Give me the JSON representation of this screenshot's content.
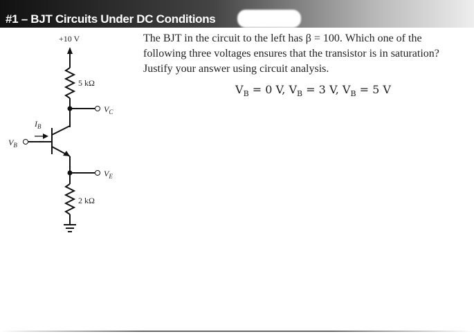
{
  "header": {
    "title": "#1 – BJT Circuits Under DC Conditions"
  },
  "circuit": {
    "supply": "+10 V",
    "rc": "5 kΩ",
    "re": "2 kΩ",
    "vc": {
      "symbol": "V",
      "subscript": "C"
    },
    "ve": {
      "symbol": "V",
      "subscript": "E"
    },
    "vb": {
      "symbol": "V",
      "subscript": "B"
    },
    "ib": {
      "symbol": "I",
      "subscript": "B"
    }
  },
  "question": {
    "lines": [
      "The BJT in the circuit to the left has β = 100. Which one of the",
      "following three voltages ensures that the transistor is in saturation?",
      "Justify your answer using circuit analysis."
    ],
    "options": [
      {
        "symbol": "V",
        "subscript": "B",
        "rhs": " = 0 V, "
      },
      {
        "symbol": "V",
        "subscript": "B",
        "rhs": " = 3 V, "
      },
      {
        "symbol": "V",
        "subscript": "B",
        "rhs": " = 5 V"
      }
    ]
  }
}
